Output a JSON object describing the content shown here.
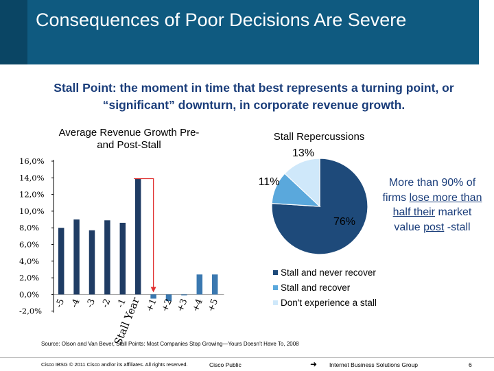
{
  "slide": {
    "title": "Consequences of Poor Decisions Are Severe",
    "subtitle": "Stall Point: the moment in time that best represents a turning point, or “significant” downturn, in corporate revenue growth.",
    "note_parts": [
      "More than 90% of firms ",
      "lose more than half their",
      " ",
      "market value ",
      "post",
      " -stall"
    ],
    "source": "Source: Olson and Van Bever, Stall Points: Most Companies Stop Growing—Yours Doesn’t Have To, 2008",
    "footer": {
      "copyright": "Cisco IBSG © 2011 Cisco and/or its affiliates. All rights reserved.",
      "classification": "Cisco Public",
      "group": "Internet Business Solutions Group",
      "page": "6"
    },
    "arrow_color": "#e03030"
  },
  "chart_data": [
    {
      "type": "bar",
      "title": "Average Revenue Growth Pre- and Post-Stall",
      "categories": [
        "-5",
        "-4",
        "-3",
        "-2",
        "-1",
        "Stall Year",
        "+1",
        "+2",
        "+3",
        "+4",
        "+5"
      ],
      "values": [
        8.0,
        9.0,
        7.7,
        8.9,
        8.6,
        13.9,
        -0.5,
        -0.8,
        -0.1,
        2.4,
        2.4
      ],
      "ytick_labels": [
        "16,0%",
        "14,0%",
        "12,0%",
        "10,0%",
        "8,0%",
        "6,0%",
        "4,0%",
        "2,0%",
        "0,0%",
        "-2,0%"
      ],
      "ylim": [
        -2,
        16
      ],
      "xlabel": "",
      "ylabel": "",
      "grid": false,
      "colors": {
        "bars": "#1f3c64",
        "post_stall": "#3a78b0"
      }
    },
    {
      "type": "pie",
      "title": "Stall Repercussions",
      "labels": [
        "Stall and never recover",
        "Stall and recover",
        "Don't experience a stall"
      ],
      "values": [
        76,
        11,
        13
      ],
      "value_labels": [
        "76%",
        "11%",
        "13%"
      ],
      "colors": [
        "#1e4a7a",
        "#5aa8dc",
        "#cfe8fa"
      ],
      "legend_position": "bottom"
    }
  ]
}
